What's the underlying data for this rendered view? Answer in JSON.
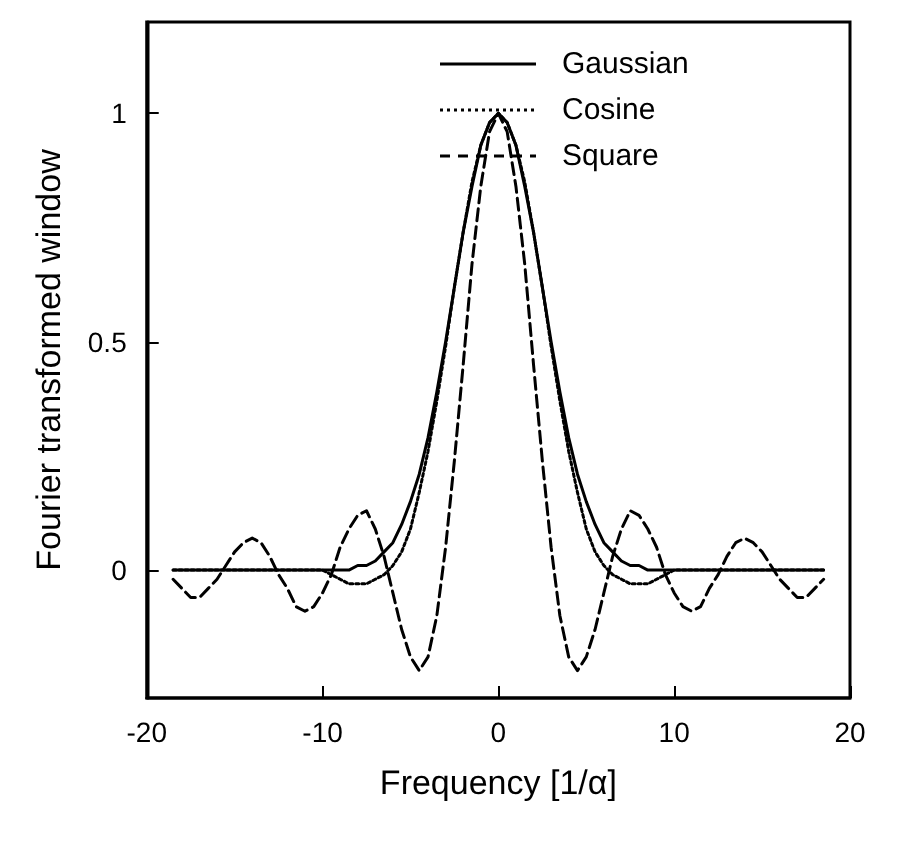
{
  "chart_data": {
    "type": "line",
    "xlabel": "Frequency [1/α]",
    "ylabel": "Fourier transformed window",
    "x": [
      -18.5,
      -18,
      -17.5,
      -17,
      -16.5,
      -16,
      -15.5,
      -15,
      -14.5,
      -14,
      -13.5,
      -13,
      -12.5,
      -12,
      -11.5,
      -11,
      -10.5,
      -10,
      -9.5,
      -9,
      -8.5,
      -8,
      -7.5,
      -7,
      -6.5,
      -6,
      -5.5,
      -5,
      -4.5,
      -4,
      -3.5,
      -3,
      -2.5,
      -2,
      -1.5,
      -1,
      -0.5,
      0,
      0.5,
      1,
      1.5,
      2,
      2.5,
      3,
      3.5,
      4,
      4.5,
      5,
      5.5,
      6,
      6.5,
      7,
      7.5,
      8,
      8.5,
      9,
      9.5,
      10,
      10.5,
      11,
      11.5,
      12,
      12.5,
      13,
      13.5,
      14,
      14.5,
      15,
      15.5,
      16,
      16.5,
      17,
      17.5,
      18,
      18.5
    ],
    "series": [
      {
        "name": "Gaussian",
        "color": "#000000",
        "line_style": "solid",
        "values": [
          0,
          0,
          0,
          0,
          0,
          0,
          0,
          0,
          0,
          0,
          0,
          0,
          0,
          0,
          0,
          0,
          0,
          0,
          0,
          0,
          0,
          0.01,
          0.01,
          0.02,
          0.04,
          0.06,
          0.1,
          0.15,
          0.21,
          0.29,
          0.39,
          0.5,
          0.62,
          0.74,
          0.84,
          0.93,
          0.98,
          1,
          0.98,
          0.93,
          0.84,
          0.74,
          0.62,
          0.5,
          0.39,
          0.29,
          0.21,
          0.15,
          0.1,
          0.06,
          0.04,
          0.02,
          0.01,
          0.01,
          0,
          0,
          0,
          0,
          0,
          0,
          0,
          0,
          0,
          0,
          0,
          0,
          0,
          0,
          0,
          0,
          0,
          0,
          0,
          0,
          0
        ]
      },
      {
        "name": "Cosine",
        "color": "#000000",
        "line_style": "dotted",
        "values": [
          0,
          0,
          0,
          0,
          0,
          0,
          0,
          0,
          0,
          0,
          0,
          0,
          0,
          0,
          0,
          0,
          0,
          0,
          -0.01,
          -0.02,
          -0.03,
          -0.03,
          -0.03,
          -0.02,
          -0.01,
          0.01,
          0.04,
          0.09,
          0.17,
          0.26,
          0.37,
          0.49,
          0.62,
          0.74,
          0.85,
          0.93,
          0.98,
          1,
          0.98,
          0.93,
          0.85,
          0.74,
          0.62,
          0.49,
          0.37,
          0.26,
          0.17,
          0.09,
          0.04,
          0.01,
          -0.01,
          -0.02,
          -0.03,
          -0.03,
          -0.03,
          -0.02,
          -0.01,
          0,
          0,
          0,
          0,
          0,
          0,
          0,
          0,
          0,
          0,
          0,
          0,
          0,
          0,
          0,
          0,
          0,
          0
        ]
      },
      {
        "name": "Square",
        "color": "#000000",
        "line_style": "dashed",
        "values": [
          -0.02,
          -0.04,
          -0.06,
          -0.06,
          -0.04,
          -0.02,
          0.01,
          0.04,
          0.06,
          0.07,
          0.06,
          0.03,
          -0.01,
          -0.04,
          -0.08,
          -0.09,
          -0.08,
          -0.05,
          -0.01,
          0.05,
          0.09,
          0.12,
          0.13,
          0.09,
          0.03,
          -0.05,
          -0.13,
          -0.19,
          -0.22,
          -0.19,
          -0.1,
          0.05,
          0.24,
          0.45,
          0.67,
          0.84,
          0.96,
          1,
          0.96,
          0.84,
          0.67,
          0.45,
          0.24,
          0.05,
          -0.1,
          -0.19,
          -0.22,
          -0.19,
          -0.13,
          -0.05,
          0.03,
          0.09,
          0.13,
          0.12,
          0.09,
          0.05,
          -0.01,
          -0.05,
          -0.08,
          -0.09,
          -0.08,
          -0.04,
          -0.01,
          0.03,
          0.06,
          0.07,
          0.06,
          0.04,
          0.01,
          -0.02,
          -0.04,
          -0.06,
          -0.06,
          -0.04,
          -0.02
        ]
      }
    ],
    "xlim": [
      -20,
      20
    ],
    "xticks": [
      -20,
      -10,
      0,
      10,
      20
    ],
    "ylim": [
      -0.28,
      1.2
    ],
    "yticks": [
      0,
      0.5,
      1
    ],
    "legend": "top right",
    "marker": "none",
    "grid": false
  }
}
